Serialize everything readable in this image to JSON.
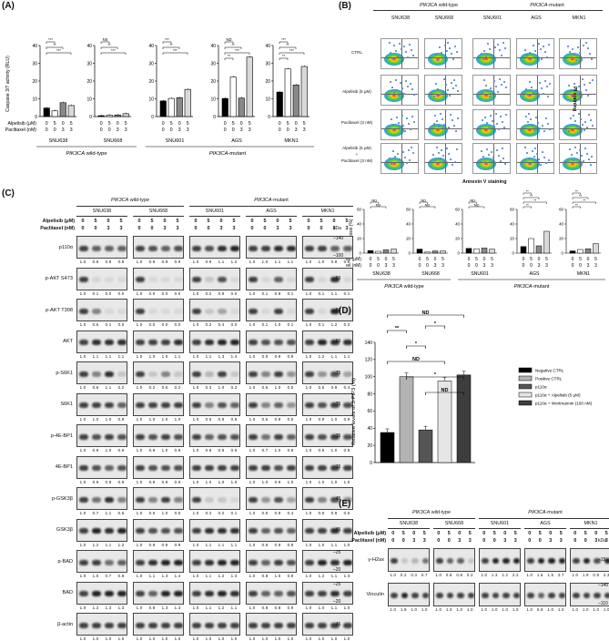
{
  "panels": {
    "A": "(A)",
    "B": "(B)",
    "C": "(C)",
    "D": "(D)",
    "E": "(E)"
  },
  "groups": {
    "wildtype": "PIK3CA wild-type",
    "mutant": "PIK3CA-mutant",
    "wt_suffix": " wild-type",
    "mut_suffix": "-mutant",
    "gene": "PIK3CA"
  },
  "cells": [
    "SNU638",
    "SNU668",
    "SNU601",
    "AGS",
    "MKN1"
  ],
  "treat_labels": {
    "alpelisib": "Alpelisib (μM)",
    "paclitaxel": "Paclitaxel (nM)"
  },
  "treat_values": {
    "alpelisib": [
      "0",
      "5",
      "0",
      "5"
    ],
    "paclitaxel": [
      "0",
      "0",
      "3",
      "3"
    ]
  },
  "panelA": {
    "ylabel": "Caspase 3/7 activity (RLU)",
    "sig": [
      "***",
      "**",
      "NS",
      "ND"
    ],
    "chart_data": {
      "type": "bar",
      "categories": [
        "Control",
        "Alpelisib 5 μM",
        "Paclitaxel 3 nM",
        "Alpelisib + Paclitaxel"
      ],
      "series": [
        {
          "name": "SNU638",
          "values": [
            4.8,
            3.2,
            7.8,
            6.2
          ]
        },
        {
          "name": "SNU668",
          "values": [
            0.5,
            0.8,
            0.9,
            1.6
          ]
        },
        {
          "name": "SNU601",
          "values": [
            8.8,
            10.2,
            10.6,
            15.3
          ]
        },
        {
          "name": "AGS",
          "values": [
            10.2,
            22.2,
            10.4,
            33.5
          ]
        },
        {
          "name": "MKN1",
          "values": [
            13.8,
            26.8,
            17.8,
            28.2
          ]
        }
      ],
      "yticks": [
        [
          0,
          10,
          20,
          30,
          40
        ],
        [
          0,
          10,
          20,
          30,
          40
        ],
        [
          0,
          10,
          20,
          30,
          40
        ],
        [
          0,
          10,
          20,
          30,
          40
        ],
        [
          0,
          10,
          20,
          30,
          40
        ]
      ],
      "ylim": [
        0,
        40
      ]
    }
  },
  "panelB": {
    "rows": [
      "CTRL",
      "Alpelisib (5 μM)",
      "Paclitaxel (3 nM)",
      "Alpelisib (5 μM)",
      "+",
      "Paclitaxel (3 nM)"
    ],
    "xlabel": "Annexin V staining",
    "ylabel": "PI staining",
    "ylabel2": "Apoptosis (%)",
    "sig": [
      "**",
      "ND"
    ],
    "chart_data": {
      "type": "bar",
      "categories": [
        "Control",
        "Alpelisib",
        "Paclitaxel",
        "Combination"
      ],
      "series": [
        {
          "name": "SNU638",
          "values": [
            3.5,
            2.5,
            4.5,
            5.5
          ]
        },
        {
          "name": "SNU668",
          "values": [
            5.5,
            1.5,
            3.0,
            3.0
          ]
        },
        {
          "name": "SNU601",
          "values": [
            6.5,
            6.0,
            7.0,
            5.5
          ]
        },
        {
          "name": "AGS",
          "values": [
            9.0,
            20.0,
            10.0,
            30.0
          ]
        },
        {
          "name": "MKN1",
          "values": [
            3.0,
            5.0,
            6.0,
            13.0
          ]
        }
      ],
      "yticks": [
        0,
        20,
        40,
        60
      ],
      "ylim": [
        0,
        60
      ]
    }
  },
  "panelC": {
    "kda_label": "kDa",
    "proteins": [
      {
        "name": "p110α",
        "kda": [
          "140",
          "100"
        ],
        "nums": [
          "1.0",
          "0.8",
          "0.8",
          "0.8",
          "1.0",
          "0.9",
          "0.8",
          "0.9",
          "1.0",
          "0.9",
          "1.1",
          "1.2",
          "1.0",
          "1.0",
          "1.1",
          "1.1",
          "1.0",
          "1.0",
          "0.8",
          "0.8"
        ]
      },
      {
        "name": "p-AKT S473",
        "kda": [
          "60"
        ],
        "nums": [
          "1.0",
          "0.1",
          "0.0",
          "0.0",
          "1.0",
          "0.0",
          "0.0",
          "0.0",
          "1.0",
          "0.2",
          "0.9",
          "0.0",
          "1.0",
          "0.1",
          "0.8",
          "0.1",
          "1.0",
          "0.1",
          "1.1",
          "0.1"
        ]
      },
      {
        "name": "p-AKT T308",
        "kda": [
          "60"
        ],
        "nums": [
          "1.0",
          "0.6",
          "0.1",
          "0.0",
          "1.0",
          "0.0",
          "0.0",
          "0.0",
          "1.0",
          "0.2",
          "0.4",
          "0.0",
          "1.0",
          "0.1",
          "1.0",
          "0.1",
          "1.0",
          "0.1",
          "1.2",
          "0.2"
        ]
      },
      {
        "name": "AKT",
        "kda": [
          "60"
        ],
        "nums": [
          "1.0",
          "1.1",
          "1.1",
          "1.1",
          "1.0",
          "1.0",
          "1.0",
          "1.1",
          "1.0",
          "1.1",
          "1.3",
          "1.4",
          "1.0",
          "0.9",
          "0.9",
          "0.9",
          "1.0",
          "1.2",
          "1.1",
          "1.1"
        ]
      },
      {
        "name": "p-S6K1",
        "kda": [
          "75"
        ],
        "nums": [
          "1.0",
          "0.6",
          "1.1",
          "0.2",
          "1.0",
          "0.2",
          "0.6",
          "0.2",
          "1.0",
          "0.3",
          "1.0",
          "0.2",
          "1.0",
          "0.6",
          "1.0",
          "0.5",
          "1.0",
          "0.5",
          "0.9",
          "0.4"
        ]
      },
      {
        "name": "S6K1",
        "kda": [
          "75"
        ],
        "nums": [
          "1.0",
          "1.0",
          "1.0",
          "0.8",
          "1.0",
          "1.0",
          "1.0",
          "1.0",
          "1.0",
          "0.6",
          "0.9",
          "0.8",
          "1.0",
          "0.6",
          "0.8",
          "0.5",
          "1.0",
          "0.9",
          "1.0",
          "0.9"
        ]
      },
      {
        "name": "p-4E-BP1",
        "kda": [
          "15"
        ],
        "nums": [
          "1.0",
          "0.9",
          "1.0",
          "0.9",
          "1.0",
          "0.9",
          "1.0",
          "0.9",
          "1.0",
          "0.8",
          "0.9",
          "0.9",
          "1.0",
          "0.7",
          "1.0",
          "0.8",
          "1.0",
          "0.9",
          "1.0",
          "0.9"
        ]
      },
      {
        "name": "4E-BP1",
        "kda": [
          "15"
        ],
        "nums": [
          "1.0",
          "0.9",
          "0.8",
          "0.9",
          "1.0",
          "0.9",
          "0.9",
          "0.9",
          "1.0",
          "1.0",
          "1.0",
          "1.0",
          "1.0",
          "1.0",
          "0.9",
          "1.0",
          "1.0",
          "1.0",
          "1.0",
          "1.0"
        ]
      },
      {
        "name": "p-GSK3β",
        "kda": [
          "45"
        ],
        "nums": [
          "1.0",
          "0.7",
          "1.1",
          "0.6",
          "1.0",
          "0.6",
          "1.0",
          "0.6",
          "1.0",
          "0.2",
          "0.2",
          "0.1",
          "1.0",
          "0.5",
          "0.9",
          "0.4",
          "1.0",
          "0.6",
          "0.9",
          "0.5"
        ]
      },
      {
        "name": "GSK3β",
        "kda": [
          "45"
        ],
        "nums": [
          "1.0",
          "1.2",
          "1.1",
          "1.2",
          "1.0",
          "0.9",
          "0.9",
          "0.9",
          "1.0",
          "1.1",
          "1.1",
          "1.1",
          "1.0",
          "0.8",
          "0.9",
          "0.8",
          "1.0",
          "1.0",
          "1.1",
          "1.0"
        ]
      },
      {
        "name": "p-BAD",
        "kda": [
          "25",
          "20"
        ],
        "nums": [
          "1.0",
          "1.0",
          "0.7",
          "0.8",
          "1.0",
          "1.1",
          "1.3",
          "1.4",
          "1.0",
          "1.1",
          "1.2",
          "1.3",
          "1.0",
          "0.8",
          "1.0",
          "0.9",
          "1.0",
          "1.2",
          "1.1",
          "1.3"
        ]
      },
      {
        "name": "BAD",
        "kda": [
          "25",
          "20"
        ],
        "nums": [
          "1.0",
          "1.2",
          "1.3",
          "1.3",
          "1.0",
          "0.8",
          "1.3",
          "1.3",
          "1.0",
          "1.1",
          "1.2",
          "1.1",
          "1.0",
          "0.8",
          "0.8",
          "0.9",
          "1.0",
          "1.0",
          "1.1",
          "1.0"
        ]
      },
      {
        "name": "β-actin",
        "kda": [
          "45"
        ],
        "nums": [
          "1.0",
          "1.0",
          "1.0",
          "1.0",
          "1.0",
          "1.0",
          "1.0",
          "1.0",
          "1.0",
          "1.0",
          "1.0",
          "1.0",
          "1.0",
          "1.0",
          "1.0",
          "1.0",
          "1.0",
          "1.0",
          "1.0",
          "1.0"
        ]
      }
    ]
  },
  "panelD": {
    "ylabel": "Relative levels of 3-PIP3 (%)",
    "legend": [
      "Negative CTRL",
      "Positive CTRL",
      "p110α",
      "p110α + Alpelisib (5 μM)",
      "p110α + Wortmannin (100 nM)"
    ],
    "sig": [
      "ND",
      "**",
      "*",
      "ND",
      "*",
      "ND",
      "*"
    ],
    "chart_data": {
      "type": "bar",
      "categories": [
        "Negative CTRL",
        "Positive CTRL",
        "p110α",
        "p110α + Alpelisib (5 μM)",
        "p110α + Wortmannin (100 nM)"
      ],
      "values": [
        35,
        100,
        38,
        95,
        102
      ],
      "colors": [
        "#000000",
        "#b3b3b3",
        "#555555",
        "#e6e6e6",
        "#3d3d3d"
      ],
      "yticks": [
        0,
        20,
        40,
        60,
        80,
        100,
        120,
        140
      ],
      "ylim": [
        0,
        140
      ]
    }
  },
  "panelE": {
    "kda_label": "kDa",
    "proteins": [
      {
        "name": "γ-H2ax",
        "kda": [
          "15"
        ],
        "nums": [
          "1.0",
          "0.2",
          "0.3",
          "0.7",
          "1.0",
          "0.8",
          "0.8",
          "0.2",
          "1.0",
          "1.3",
          "1.2",
          "2.2",
          "1.0",
          "1.6",
          "1.5",
          "2.7",
          "1.0",
          "1.9",
          "0.9",
          "2.3"
        ]
      },
      {
        "name": "Vinculin",
        "kda": [
          "140",
          "110"
        ],
        "nums": [
          "1.0",
          "1.8",
          "1.0",
          "1.0",
          "1.0",
          "1.0",
          "1.0",
          "1.0",
          "1.0",
          "1.0",
          "1.0",
          "1.0",
          "1.0",
          "0.8",
          "1.0",
          "1.0",
          "1.0",
          "1.0",
          "1.0",
          "1.0"
        ]
      }
    ]
  }
}
